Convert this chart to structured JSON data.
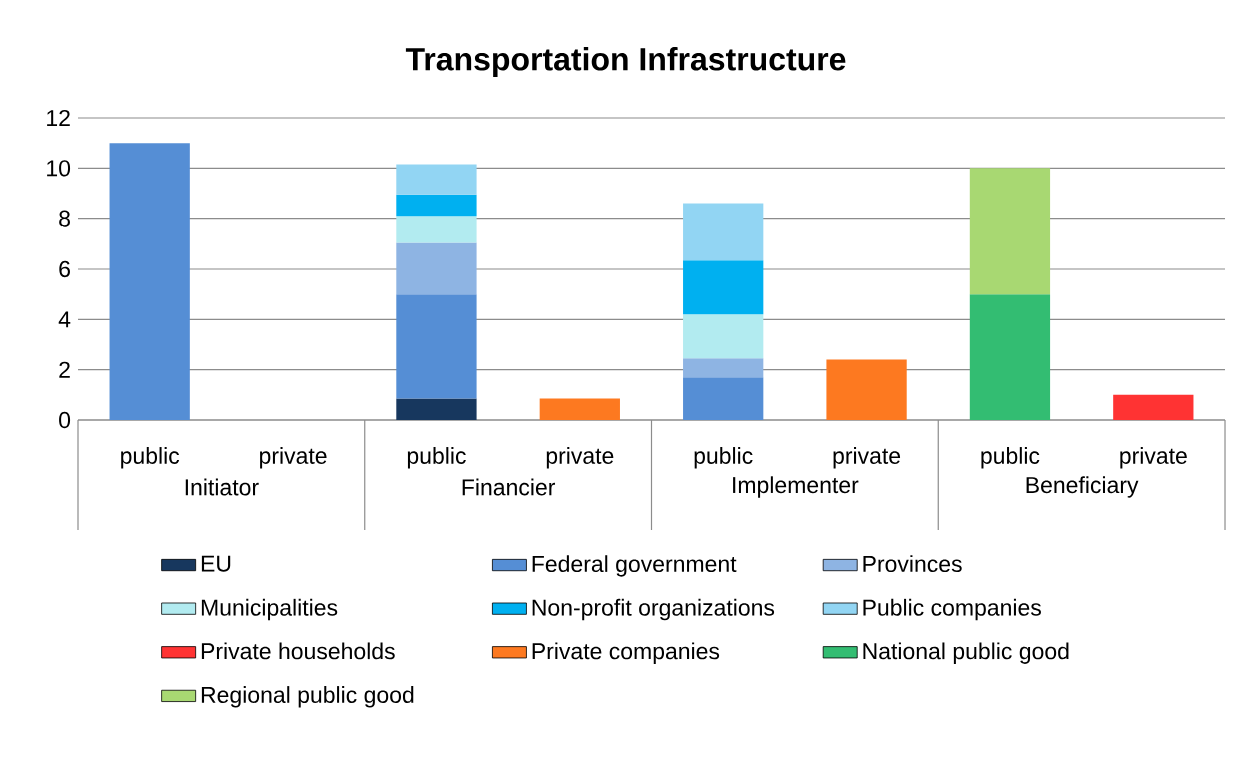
{
  "chart_data": {
    "type": "bar",
    "title": "Transportation Infrastructure",
    "categories": [
      "public",
      "private",
      "public",
      "private",
      "public",
      "private",
      "public",
      "private"
    ],
    "annotations": [
      "Initiator",
      "Financier",
      "Implementer",
      "Beneficiary"
    ],
    "stacked": true,
    "ylim": [
      0,
      12
    ],
    "yticks": [
      0,
      2,
      4,
      6,
      8,
      10,
      12
    ],
    "grid": "y",
    "legend": "bottom",
    "series": [
      {
        "name": "EU",
        "color": "#17375e",
        "values": [
          null,
          null,
          0.85,
          null,
          null,
          null,
          null,
          null
        ]
      },
      {
        "name": "Federal government",
        "color": "#558ed5",
        "values": [
          11,
          null,
          4.15,
          null,
          1.7,
          null,
          null,
          null
        ]
      },
      {
        "name": "Provinces",
        "color": "#8eb4e3",
        "values": [
          null,
          null,
          2.05,
          null,
          0.75,
          null,
          null,
          null
        ]
      },
      {
        "name": "Municipalities",
        "color": "#b2ebf0",
        "values": [
          null,
          null,
          1.05,
          null,
          1.75,
          null,
          null,
          null
        ]
      },
      {
        "name": "Non-profit organizations",
        "color": "#00b0f0",
        "values": [
          null,
          null,
          0.85,
          null,
          2.15,
          null,
          null,
          null
        ]
      },
      {
        "name": "Public companies",
        "color": "#92d5f3",
        "values": [
          null,
          null,
          1.2,
          null,
          2.25,
          null,
          null,
          null
        ]
      },
      {
        "name": "Private households",
        "color": "#ff3333",
        "values": [
          null,
          null,
          null,
          null,
          null,
          null,
          null,
          1
        ]
      },
      {
        "name": "Private companies",
        "color": "#fd7920",
        "values": [
          null,
          null,
          null,
          0.85,
          null,
          2.4,
          null,
          null
        ]
      },
      {
        "name": "National public good",
        "color": "#33bd72",
        "values": [
          null,
          null,
          null,
          null,
          null,
          null,
          5,
          null
        ]
      },
      {
        "name": "Regional public good",
        "color": "#a8d872",
        "values": [
          null,
          null,
          null,
          null,
          null,
          null,
          5,
          null
        ]
      }
    ]
  }
}
